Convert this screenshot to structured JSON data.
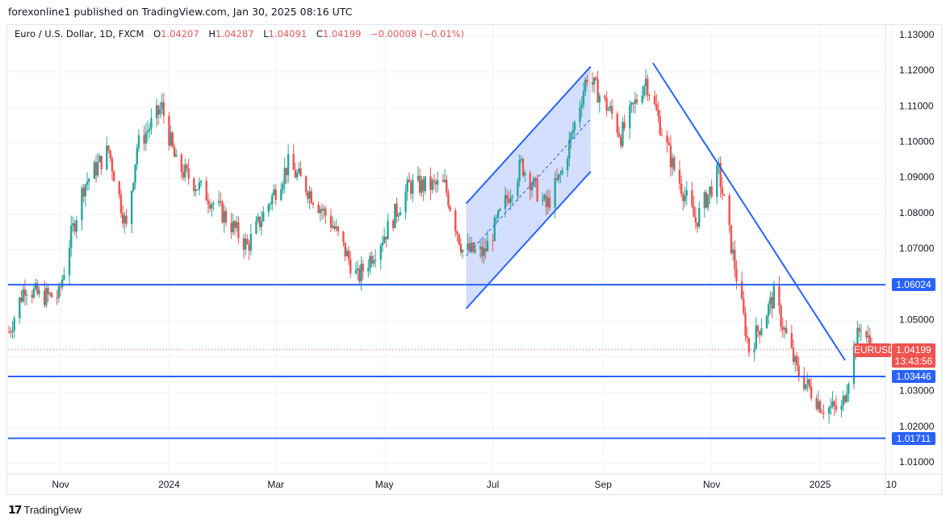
{
  "published": "forexonline1 published on TradingView.com, Jan 30, 2025 08:16 UTC",
  "legend": {
    "symbol": "Euro / U.S. Dollar, 1D, FXCM",
    "open_label": "O",
    "open": "1.04207",
    "high_label": "H",
    "high": "1.04287",
    "low_label": "L",
    "low": "1.04091",
    "close_label": "C",
    "close": "1.04199",
    "change": "−0.00008 (−0.01%)"
  },
  "price_tag": {
    "symbol": "EURUSD",
    "price": "1.04199",
    "countdown": "13:43:56",
    "color": "#ef5350"
  },
  "levels": [
    {
      "price": 1.06024,
      "label": "1.06024"
    },
    {
      "price": 1.03446,
      "label": "1.03446"
    },
    {
      "price": 1.01711,
      "label": "1.01711"
    }
  ],
  "brand": "TradingView",
  "chart_data": {
    "type": "candlestick",
    "timeframe": "1D",
    "ylim": [
      1.005,
      1.135
    ],
    "y_ticks": [
      "1.13000",
      "1.12000",
      "1.11000",
      "1.10000",
      "1.09000",
      "1.08000",
      "1.07000",
      "1.06000",
      "1.05000",
      "1.04000",
      "1.03000",
      "1.02000",
      "1.01000"
    ],
    "x_ticks": [
      {
        "date": "2023-11-01",
        "label": "Nov"
      },
      {
        "date": "2024-01-01",
        "label": "2024"
      },
      {
        "date": "2024-03-01",
        "label": "Mar"
      },
      {
        "date": "2024-05-01",
        "label": "May"
      },
      {
        "date": "2024-07-01",
        "label": "Jul"
      },
      {
        "date": "2024-09-01",
        "label": "Sep"
      },
      {
        "date": "2024-11-01",
        "label": "Nov"
      },
      {
        "date": "2025-01-01",
        "label": "2025"
      },
      {
        "date": "2025-02-10",
        "label": "10"
      }
    ],
    "grid": true,
    "colors": {
      "up": "#26a69a",
      "down": "#ef5350",
      "drawing": "#2962ff",
      "channel_fill": "#c9d6ff"
    },
    "approx_closes": [
      [
        "2023-10-03",
        1.047
      ],
      [
        "2023-10-12",
        1.06
      ],
      [
        "2023-10-20",
        1.057
      ],
      [
        "2023-10-31",
        1.057
      ],
      [
        "2023-11-06",
        1.072
      ],
      [
        "2023-11-14",
        1.088
      ],
      [
        "2023-11-28",
        1.098
      ],
      [
        "2023-12-08",
        1.076
      ],
      [
        "2023-12-14",
        1.099
      ],
      [
        "2023-12-28",
        1.11
      ],
      [
        "2024-01-05",
        1.094
      ],
      [
        "2024-01-23",
        1.085
      ],
      [
        "2024-02-02",
        1.079
      ],
      [
        "2024-02-14",
        1.071
      ],
      [
        "2024-03-08",
        1.094
      ],
      [
        "2024-03-19",
        1.087
      ],
      [
        "2024-04-02",
        1.077
      ],
      [
        "2024-04-16",
        1.062
      ],
      [
        "2024-05-03",
        1.076
      ],
      [
        "2024-05-15",
        1.088
      ],
      [
        "2024-06-04",
        1.088
      ],
      [
        "2024-06-14",
        1.07
      ],
      [
        "2024-06-26",
        1.069
      ],
      [
        "2024-07-17",
        1.094
      ],
      [
        "2024-07-31",
        1.082
      ],
      [
        "2024-08-09",
        1.092
      ],
      [
        "2024-08-23",
        1.119
      ],
      [
        "2024-09-06",
        1.108
      ],
      [
        "2024-09-11",
        1.102
      ],
      [
        "2024-09-25",
        1.118
      ],
      [
        "2024-10-10",
        1.094
      ],
      [
        "2024-10-23",
        1.078
      ],
      [
        "2024-11-05",
        1.092
      ],
      [
        "2024-11-22",
        1.042
      ],
      [
        "2024-12-06",
        1.057
      ],
      [
        "2024-12-19",
        1.036
      ],
      [
        "2025-01-02",
        1.026
      ],
      [
        "2025-01-13",
        1.025
      ],
      [
        "2025-01-20",
        1.042
      ],
      [
        "2025-01-24",
        1.049
      ],
      [
        "2025-01-30",
        1.04199
      ]
    ],
    "drawings": {
      "channel": {
        "upper": [
          [
            "2024-06-16",
            1.083
          ],
          [
            "2024-08-25",
            1.1215
          ]
        ],
        "lower": [
          [
            "2024-06-16",
            1.0535
          ],
          [
            "2024-08-25",
            1.092
          ]
        ]
      },
      "trendline": [
        [
          "2024-09-29",
          1.1225
        ],
        [
          "2025-01-15",
          1.039
        ]
      ]
    }
  }
}
